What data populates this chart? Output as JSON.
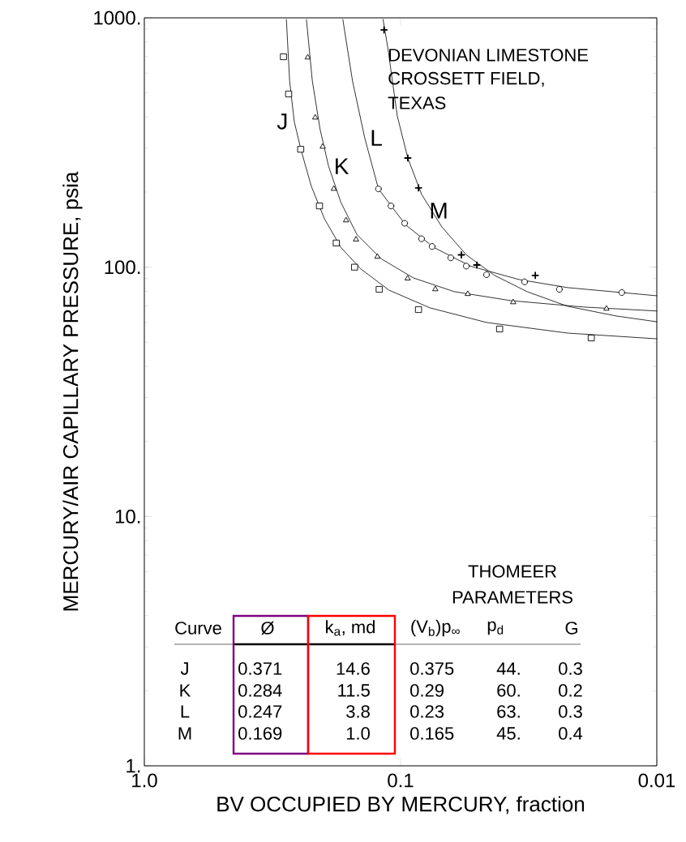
{
  "chart_data": {
    "type": "line",
    "xlabel": "BV OCCUPIED BY MERCURY, fraction",
    "ylabel": "MERCURY/AIR CAPILLARY PRESSURE, psia",
    "log": "xy",
    "xlim": [
      1.0,
      0.01
    ],
    "xticks": [
      {
        "value": 1,
        "label": "1.0"
      },
      0.1,
      0.01
    ],
    "ylim": [
      1,
      1000
    ],
    "yticks": [
      {
        "value": 1,
        "label": "1."
      },
      {
        "value": 10,
        "label": "10."
      },
      {
        "value": 100,
        "label": "100."
      },
      {
        "value": 1000,
        "label": "1000."
      }
    ],
    "series": [
      {
        "type": "scatter",
        "marker": "square",
        "color": "#000000",
        "x": [
          0.286,
          0.273,
          0.245,
          0.207,
          0.178,
          0.151,
          0.121,
          0.085,
          0.041,
          0.018
        ],
        "values": [
          698,
          495,
          297,
          176,
          125,
          100,
          81.5,
          67.6,
          56.5,
          52.0
        ]
      },
      {
        "type": "line",
        "name": "J",
        "color": "#000000",
        "line_style": "solid",
        "x": [
          0.279,
          0.271,
          0.26,
          0.245,
          0.223,
          0.198,
          0.171,
          0.143,
          0.111,
          0.0769,
          0.0462,
          0.0223,
          0.01
        ],
        "values": [
          985,
          558,
          384,
          297,
          211,
          156,
          120,
          98.4,
          80.9,
          68.7,
          60.0,
          54.4,
          51.6
        ]
      },
      {
        "type": "scatter",
        "marker": "triangle",
        "color": "#000000",
        "x": [
          0.23,
          0.215,
          0.201,
          0.182,
          0.163,
          0.149,
          0.123,
          0.0937,
          0.0731,
          0.0546,
          0.0363,
          0.0157
        ],
        "values": [
          693,
          398,
          304,
          206,
          154,
          129,
          110,
          90,
          81.5,
          78,
          72.3,
          68.1
        ]
      },
      {
        "type": "line",
        "name": "K",
        "color": "#000000",
        "line_style": "solid",
        "x": [
          0.233,
          0.221,
          0.206,
          0.191,
          0.171,
          0.148,
          0.119,
          0.089,
          0.0618,
          0.0371,
          0.0193,
          0.01
        ],
        "values": [
          985,
          558,
          356,
          254,
          182,
          135,
          108,
          90.5,
          79.8,
          73.4,
          69.2,
          66.7
        ]
      },
      {
        "type": "scatter",
        "marker": "circle",
        "color": "#000000",
        "x": [
          0.122,
          0.109,
          0.0964,
          0.0828,
          0.0753,
          0.0637,
          0.0554,
          0.0462,
          0.0328,
          0.024,
          0.0137
        ],
        "values": [
          206,
          176,
          150,
          130,
          121,
          109,
          101,
          93.3,
          87.3,
          81.5,
          79.1
        ]
      },
      {
        "type": "line",
        "name": "L",
        "color": "#000000",
        "line_style": "solid",
        "x": [
          0.168,
          0.154,
          0.138,
          0.122,
          0.0957,
          0.0742,
          0.0534,
          0.0345,
          0.0223,
          0.01
        ],
        "values": [
          985,
          558,
          330,
          206,
          148,
          120,
          101,
          89.2,
          82.8,
          76.8
        ]
      },
      {
        "type": "scatter",
        "marker": "cross",
        "color": "#000000",
        "x": [
          0.116,
          0.0937,
          0.0851,
          0.0579,
          0.0504,
          0.0298
        ],
        "values": [
          894,
          274,
          208,
          112,
          102,
          92.7
        ]
      },
      {
        "type": "line",
        "name": "M",
        "color": "#000000",
        "line_style": "solid",
        "x": [
          0.117,
          0.112,
          0.103,
          0.0937,
          0.0828,
          0.069,
          0.0554,
          0.043,
          0.0321,
          0.0223,
          0.0144,
          0.01
        ],
        "values": [
          985,
          752,
          404,
          274,
          196,
          145,
          112,
          92.7,
          79.8,
          69.7,
          63.7,
          60.4
        ]
      }
    ],
    "annotations": [
      "DEVONIAN LIMESTONE",
      "CROSSETT FIELD,",
      "TEXAS",
      "THOMEER",
      "PARAMETERS",
      "Curve",
      "Ø",
      "k$_{a}$, md",
      "(V$_{b}$)p$_{∞}$",
      "p$_{d}$",
      "G",
      "J",
      "0.371",
      "14.6",
      "0.375",
      "44.",
      "0.3",
      "K",
      "0.284",
      "11.5",
      "0.29",
      "60.",
      "0.2",
      "L",
      "0.247",
      "3.8",
      "0.23",
      "63.",
      "0.3",
      "M",
      "0.169",
      "1.0",
      "0.165",
      "45.",
      "0.4"
    ]
  }
}
